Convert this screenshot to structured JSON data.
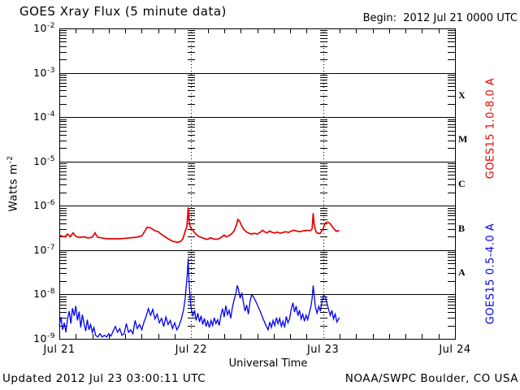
{
  "title": "GOES Xray Flux (5 minute data)",
  "begin_label": "Begin:  2012 Jul 21 0000 UTC",
  "footer": {
    "updated": "Updated 2012 Jul 23 03:00:11 UTC",
    "credit": "NOAA/SWPC Boulder, CO USA"
  },
  "axes": {
    "y_title": "Watts m",
    "y_title_exp": "-2",
    "x_title": "Universal Time"
  },
  "colors": {
    "long_channel": "#e80000",
    "short_channel": "#0000ee",
    "frame": "#000000",
    "background": "#ffffff"
  },
  "chart_data": {
    "type": "line",
    "title": "GOES Xray Flux (5 minute data)",
    "xlabel": "Universal Time",
    "ylabel": "Watts m^-2",
    "x_unit_hours_since": "2012 Jul 21 0000 UTC",
    "xlim_hours": [
      0,
      72
    ],
    "ylog_exponent_range": [
      -2,
      -9
    ],
    "x_tick_labels": [
      "Jul 21",
      "Jul 22",
      "Jul 23",
      "Jul 24"
    ],
    "y_tick_exponents": [
      -2,
      -3,
      -4,
      -5,
      -6,
      -7,
      -8,
      -9
    ],
    "flux_classes": [
      "X",
      "M",
      "C",
      "B",
      "A"
    ],
    "layout_hints": {
      "x_minor_tick_hours": 3,
      "horizontal_grid": "solid line at each decade",
      "vertical_grid": "dotted line at each day boundary with log minor ticks",
      "legend_position": "right edge, rotated vertical"
    },
    "series": [
      {
        "name": "GOES15 1.0-8.0 A",
        "color": "#e80000",
        "points": [
          [
            0,
            2.2e-07
          ],
          [
            0.5,
            2.05e-07
          ],
          [
            1,
            2e-07
          ],
          [
            1.5,
            2.3e-07
          ],
          [
            2,
            2e-07
          ],
          [
            2.5,
            2.45e-07
          ],
          [
            3,
            2.05e-07
          ],
          [
            3.5,
            1.95e-07
          ],
          [
            4,
            1.95e-07
          ],
          [
            4.5,
            2e-07
          ],
          [
            5,
            1.9e-07
          ],
          [
            5.5,
            1.9e-07
          ],
          [
            6,
            1.95e-07
          ],
          [
            6.5,
            2.45e-07
          ],
          [
            6.8,
            2.1e-07
          ],
          [
            7,
            1.95e-07
          ],
          [
            7.5,
            1.9e-07
          ],
          [
            8,
            1.85e-07
          ],
          [
            9,
            1.8e-07
          ],
          [
            10,
            1.8e-07
          ],
          [
            11,
            1.8e-07
          ],
          [
            12,
            1.85e-07
          ],
          [
            13,
            1.9e-07
          ],
          [
            14,
            1.95e-07
          ],
          [
            15,
            2.1e-07
          ],
          [
            15.5,
            2.6e-07
          ],
          [
            16,
            3.3e-07
          ],
          [
            16.5,
            3.2e-07
          ],
          [
            17,
            2.95e-07
          ],
          [
            17.5,
            2.7e-07
          ],
          [
            18,
            2.6e-07
          ],
          [
            18.5,
            2.3e-07
          ],
          [
            19,
            2.1e-07
          ],
          [
            19.5,
            1.9e-07
          ],
          [
            20,
            1.75e-07
          ],
          [
            20.5,
            1.6e-07
          ],
          [
            21,
            1.55e-07
          ],
          [
            21.5,
            1.5e-07
          ],
          [
            22,
            1.55e-07
          ],
          [
            22.5,
            1.8e-07
          ],
          [
            22.8,
            2.4e-07
          ],
          [
            23,
            2.9e-07
          ],
          [
            23.2,
            3.3e-07
          ],
          [
            23.35,
            5.5e-07
          ],
          [
            23.45,
            9.2e-07
          ],
          [
            23.55,
            6e-07
          ],
          [
            23.7,
            3.8e-07
          ],
          [
            23.9,
            3.2e-07
          ],
          [
            24.2,
            2.9e-07
          ],
          [
            24.5,
            2.6e-07
          ],
          [
            25,
            2.2e-07
          ],
          [
            25.5,
            2e-07
          ],
          [
            26,
            1.9e-07
          ],
          [
            26.5,
            1.8e-07
          ],
          [
            27,
            1.75e-07
          ],
          [
            27.5,
            1.9e-07
          ],
          [
            28,
            1.8e-07
          ],
          [
            28.5,
            1.75e-07
          ],
          [
            29,
            1.8e-07
          ],
          [
            29.5,
            1.95e-07
          ],
          [
            30,
            2.2e-07
          ],
          [
            30.3,
            2e-07
          ],
          [
            30.8,
            2.1e-07
          ],
          [
            31.3,
            2.3e-07
          ],
          [
            31.8,
            2.7e-07
          ],
          [
            32.2,
            3.6e-07
          ],
          [
            32.5,
            4.9e-07
          ],
          [
            32.8,
            4.5e-07
          ],
          [
            33.1,
            3.7e-07
          ],
          [
            33.5,
            3e-07
          ],
          [
            34,
            2.6e-07
          ],
          [
            34.5,
            2.4e-07
          ],
          [
            35,
            2.3e-07
          ],
          [
            35.5,
            2.4e-07
          ],
          [
            36,
            2.3e-07
          ],
          [
            36.5,
            2.5e-07
          ],
          [
            37,
            2.8e-07
          ],
          [
            37.3,
            2.6e-07
          ],
          [
            37.8,
            2.45e-07
          ],
          [
            38.3,
            2.7e-07
          ],
          [
            38.7,
            2.5e-07
          ],
          [
            39.2,
            2.45e-07
          ],
          [
            39.7,
            2.55e-07
          ],
          [
            40.2,
            2.4e-07
          ],
          [
            40.7,
            2.5e-07
          ],
          [
            41.2,
            2.6e-07
          ],
          [
            41.7,
            2.5e-07
          ],
          [
            42.2,
            2.7e-07
          ],
          [
            42.7,
            2.8e-07
          ],
          [
            43.2,
            2.7e-07
          ],
          [
            43.7,
            2.6e-07
          ],
          [
            44.2,
            2.7e-07
          ],
          [
            44.7,
            2.75e-07
          ],
          [
            45.2,
            2.8e-07
          ],
          [
            45.7,
            2.75e-07
          ],
          [
            46,
            3e-07
          ],
          [
            46.2,
            6.8e-07
          ],
          [
            46.4,
            3.6e-07
          ],
          [
            46.7,
            2.6e-07
          ],
          [
            47,
            2.4e-07
          ],
          [
            47.5,
            2.4e-07
          ],
          [
            48,
            3.1e-07
          ],
          [
            48.4,
            4.1e-07
          ],
          [
            48.8,
            4.3e-07
          ],
          [
            49.1,
            4.1e-07
          ],
          [
            49.4,
            3.8e-07
          ],
          [
            49.8,
            3.2e-07
          ],
          [
            50.1,
            2.9e-07
          ],
          [
            50.4,
            2.65e-07
          ],
          [
            50.7,
            2.75e-07
          ],
          [
            50.95,
            2.7e-07
          ]
        ]
      },
      {
        "name": "GOES15 0.5-4.0 A",
        "color": "#0000ee",
        "points": [
          [
            0,
            2e-09
          ],
          [
            0.3,
            3.1e-09
          ],
          [
            0.6,
            1.6e-09
          ],
          [
            0.9,
            2.3e-09
          ],
          [
            1.2,
            1.4e-09
          ],
          [
            1.5,
            2.8e-09
          ],
          [
            1.8,
            4.2e-09
          ],
          [
            2.1,
            2.2e-09
          ],
          [
            2.4,
            4.9e-09
          ],
          [
            2.7,
            3.3e-09
          ],
          [
            3.0,
            5.5e-09
          ],
          [
            3.3,
            2.6e-09
          ],
          [
            3.6,
            4.1e-09
          ],
          [
            3.9,
            1.8e-09
          ],
          [
            4.2,
            3.5e-09
          ],
          [
            4.5,
            2.2e-09
          ],
          [
            4.8,
            1.5e-09
          ],
          [
            5.1,
            2.7e-09
          ],
          [
            5.4,
            1.6e-09
          ],
          [
            5.7,
            2.1e-09
          ],
          [
            6.0,
            1.4e-09
          ],
          [
            6.3,
            1.8e-09
          ],
          [
            6.6,
            1.2e-09
          ],
          [
            7.0,
            1.1e-09
          ],
          [
            7.4,
            1.3e-09
          ],
          [
            7.8,
            1.1e-09
          ],
          [
            8.2,
            1.2e-09
          ],
          [
            8.6,
            1.1e-09
          ],
          [
            9.0,
            1.3e-09
          ],
          [
            9.4,
            1.15e-09
          ],
          [
            9.8,
            1.5e-09
          ],
          [
            10.2,
            1.9e-09
          ],
          [
            10.6,
            1.4e-09
          ],
          [
            11.0,
            1.7e-09
          ],
          [
            11.4,
            1.2e-09
          ],
          [
            11.8,
            1.3e-09
          ],
          [
            12.2,
            2.2e-09
          ],
          [
            12.6,
            1.4e-09
          ],
          [
            13.0,
            1.6e-09
          ],
          [
            13.4,
            1.3e-09
          ],
          [
            13.8,
            2.6e-09
          ],
          [
            14.2,
            1.7e-09
          ],
          [
            14.6,
            2.1e-09
          ],
          [
            15.0,
            1.6e-09
          ],
          [
            15.4,
            2.4e-09
          ],
          [
            15.8,
            3.2e-09
          ],
          [
            16.2,
            4.8e-09
          ],
          [
            16.6,
            3.4e-09
          ],
          [
            17.0,
            4.6e-09
          ],
          [
            17.4,
            2.8e-09
          ],
          [
            17.8,
            3.6e-09
          ],
          [
            18.2,
            2.3e-09
          ],
          [
            18.6,
            2.9e-09
          ],
          [
            19.0,
            1.9e-09
          ],
          [
            19.4,
            3.1e-09
          ],
          [
            19.8,
            2.1e-09
          ],
          [
            20.2,
            2.6e-09
          ],
          [
            20.6,
            1.7e-09
          ],
          [
            21.0,
            2.3e-09
          ],
          [
            21.4,
            1.6e-09
          ],
          [
            21.8,
            2e-09
          ],
          [
            22.2,
            2.8e-09
          ],
          [
            22.6,
            4.5e-09
          ],
          [
            22.9,
            8e-09
          ],
          [
            23.1,
            1.5e-08
          ],
          [
            23.3,
            3e-08
          ],
          [
            23.45,
            6.5e-08
          ],
          [
            23.6,
            2e-08
          ],
          [
            23.8,
            8.5e-09
          ],
          [
            24.0,
            5e-09
          ],
          [
            24.3,
            3.2e-09
          ],
          [
            24.6,
            4.4e-09
          ],
          [
            24.9,
            2.6e-09
          ],
          [
            25.2,
            3.8e-09
          ],
          [
            25.5,
            2.4e-09
          ],
          [
            25.8,
            3.3e-09
          ],
          [
            26.1,
            2.1e-09
          ],
          [
            26.4,
            2.9e-09
          ],
          [
            26.7,
            1.9e-09
          ],
          [
            27.0,
            2.5e-09
          ],
          [
            27.3,
            1.8e-09
          ],
          [
            27.6,
            2.6e-09
          ],
          [
            27.9,
            2e-09
          ],
          [
            28.2,
            3e-09
          ],
          [
            28.5,
            2.2e-09
          ],
          [
            28.8,
            2.7e-09
          ],
          [
            29.1,
            2e-09
          ],
          [
            29.4,
            3.4e-09
          ],
          [
            29.7,
            4.8e-09
          ],
          [
            30.0,
            3.1e-09
          ],
          [
            30.3,
            5.6e-09
          ],
          [
            30.6,
            3.5e-09
          ],
          [
            30.9,
            4.4e-09
          ],
          [
            31.2,
            2.9e-09
          ],
          [
            31.5,
            5.2e-09
          ],
          [
            31.8,
            7.5e-09
          ],
          [
            32.1,
            1e-08
          ],
          [
            32.4,
            1.6e-08
          ],
          [
            32.6,
            1.3e-08
          ],
          [
            32.9,
            8.2e-09
          ],
          [
            33.2,
            1.1e-08
          ],
          [
            33.5,
            6.5e-09
          ],
          [
            33.8,
            4.2e-09
          ],
          [
            34.1,
            5.8e-09
          ],
          [
            34.4,
            3.6e-09
          ],
          [
            34.7,
            6.8e-09
          ],
          [
            35.0,
            9.8e-09
          ],
          [
            35.3,
            9e-09
          ],
          [
            35.6,
            7.6e-09
          ],
          [
            35.9,
            6.4e-09
          ],
          [
            36.2,
            5.2e-09
          ],
          [
            36.5,
            4.3e-09
          ],
          [
            36.8,
            3.5e-09
          ],
          [
            37.1,
            2.8e-09
          ],
          [
            37.4,
            2.3e-09
          ],
          [
            37.7,
            1.9e-09
          ],
          [
            38.0,
            1.6e-09
          ],
          [
            38.3,
            2.4e-09
          ],
          [
            38.6,
            1.8e-09
          ],
          [
            38.9,
            2.6e-09
          ],
          [
            39.2,
            2e-09
          ],
          [
            39.5,
            3e-09
          ],
          [
            39.8,
            2.2e-09
          ],
          [
            40.1,
            2.9e-09
          ],
          [
            40.4,
            1.9e-09
          ],
          [
            40.7,
            2.5e-09
          ],
          [
            41.0,
            1.8e-09
          ],
          [
            41.3,
            3.2e-09
          ],
          [
            41.6,
            2.3e-09
          ],
          [
            41.9,
            2.8e-09
          ],
          [
            42.2,
            4.6e-09
          ],
          [
            42.5,
            6.5e-09
          ],
          [
            42.8,
            4e-09
          ],
          [
            43.1,
            5.5e-09
          ],
          [
            43.4,
            3.3e-09
          ],
          [
            43.7,
            4.4e-09
          ],
          [
            44.0,
            2.8e-09
          ],
          [
            44.3,
            3.6e-09
          ],
          [
            44.6,
            2.5e-09
          ],
          [
            44.9,
            3.4e-09
          ],
          [
            45.2,
            2.7e-09
          ],
          [
            45.5,
            3.9e-09
          ],
          [
            45.8,
            5.5e-09
          ],
          [
            46.0,
            8e-09
          ],
          [
            46.2,
            1.6e-08
          ],
          [
            46.4,
            9e-09
          ],
          [
            46.6,
            5.2e-09
          ],
          [
            46.9,
            3.8e-09
          ],
          [
            47.2,
            5.4e-09
          ],
          [
            47.5,
            4.2e-09
          ],
          [
            47.8,
            7e-09
          ],
          [
            48.1,
            9.8e-09
          ],
          [
            48.4,
            8.6e-09
          ],
          [
            48.7,
            6.4e-09
          ],
          [
            49.0,
            4.6e-09
          ],
          [
            49.3,
            3.4e-09
          ],
          [
            49.6,
            4.4e-09
          ],
          [
            49.9,
            2.8e-09
          ],
          [
            50.2,
            3.6e-09
          ],
          [
            50.5,
            2.4e-09
          ],
          [
            50.95,
            3e-09
          ]
        ]
      }
    ]
  }
}
